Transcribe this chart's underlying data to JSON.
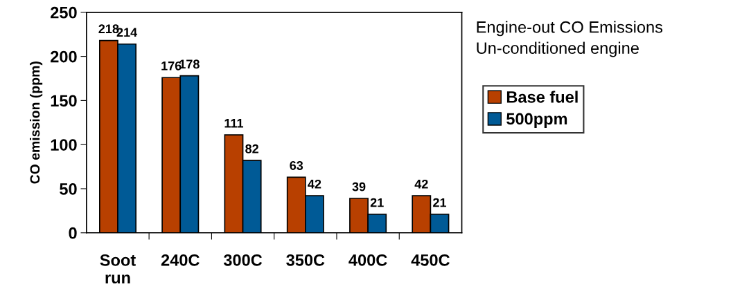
{
  "chart_data": {
    "type": "bar",
    "title": "Engine-out CO Emissions",
    "subtitle": "Un-conditioned engine",
    "ylabel": "CO emission (ppm)",
    "categories": [
      "Soot\nrun",
      "240C",
      "300C",
      "350C",
      "400C",
      "450C"
    ],
    "series": [
      {
        "name": "Base fuel",
        "color": "#b84000",
        "values": [
          218,
          176,
          111,
          63,
          39,
          42
        ]
      },
      {
        "name": "500ppm",
        "color": "#005a96",
        "values": [
          214,
          178,
          82,
          42,
          21,
          21
        ]
      }
    ],
    "ylim": [
      0,
      250
    ],
    "yticks": [
      0,
      50,
      100,
      150,
      200,
      250
    ],
    "grid": false,
    "legend": "right",
    "data_labels": true
  }
}
